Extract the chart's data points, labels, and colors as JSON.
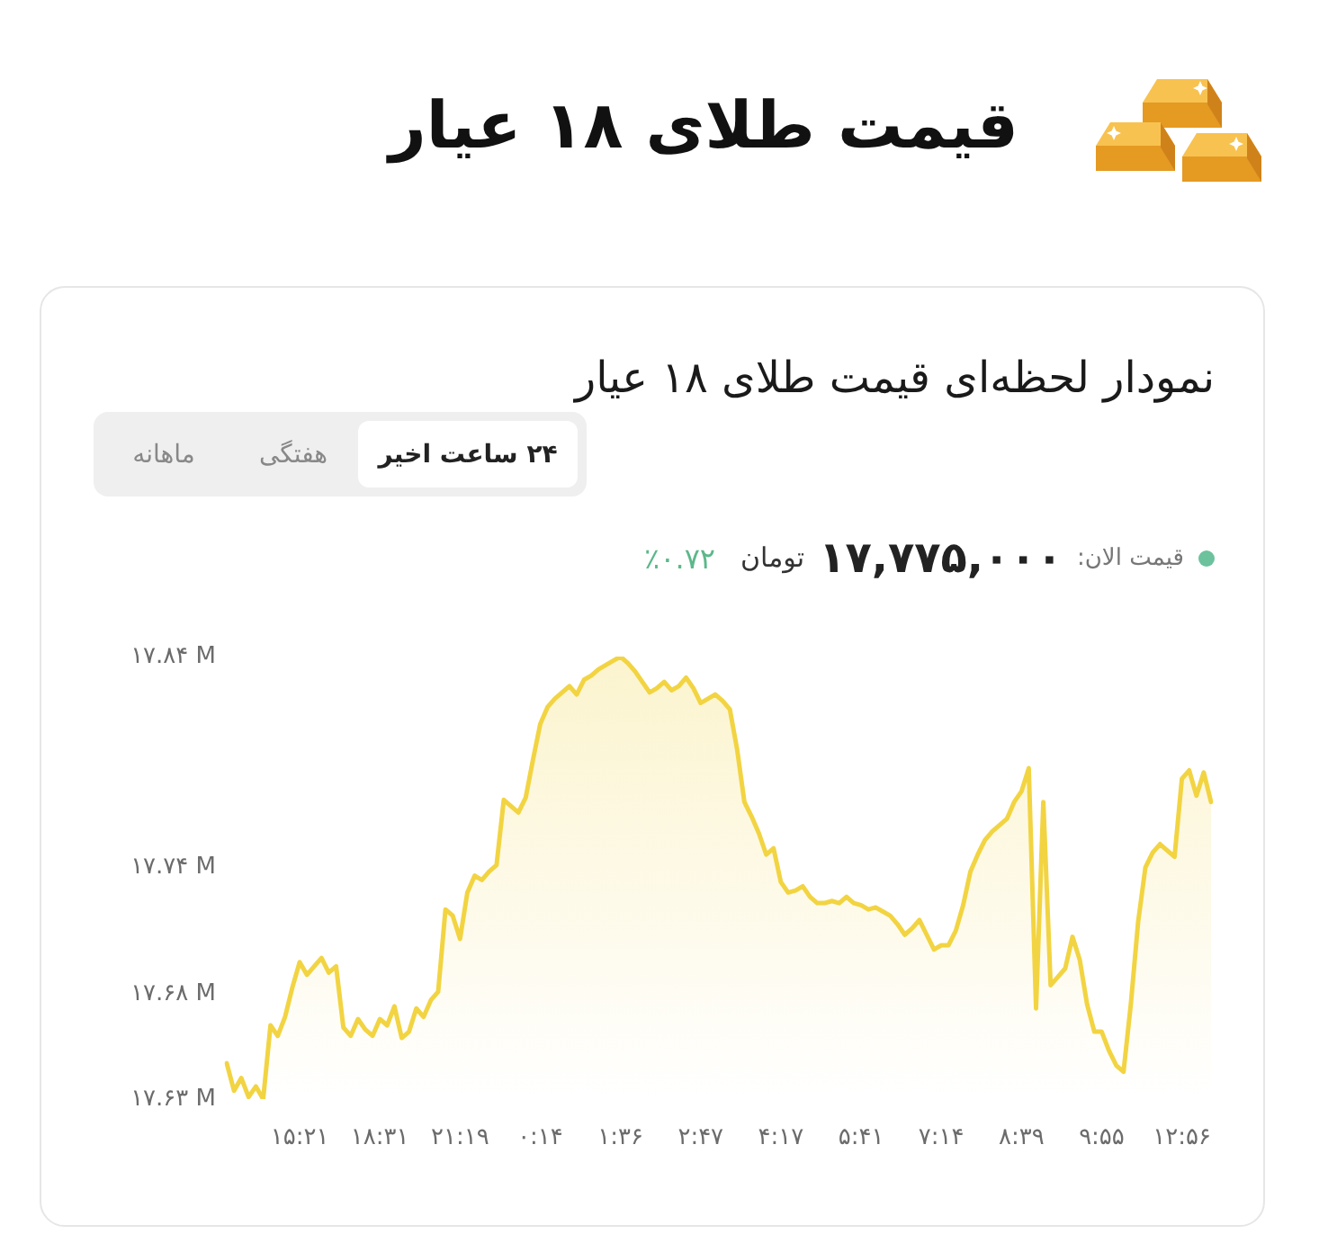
{
  "chart_data": {
    "type": "area",
    "title": "قیمت طلای ۱۸ عیار",
    "subtitle": "نمودار لحظه‌ای قیمت طلای ۱۸ عیار",
    "annotations": [
      "۲۴ ساعت اخیر",
      "هفتگی",
      "ماهانه",
      "قیمت الان:",
      "۱۷,۷۷۵,۰۰۰",
      "تومان",
      "٪۰.۷۲"
    ],
    "categories": [
      null,
      null,
      null,
      null,
      null,
      null,
      null,
      null,
      null,
      null,
      "۱۵:۲۱",
      null,
      null,
      null,
      null,
      null,
      null,
      null,
      null,
      null,
      null,
      "۱۸:۳۱",
      null,
      null,
      null,
      null,
      null,
      null,
      null,
      null,
      null,
      null,
      "۲۱:۱۹",
      null,
      null,
      null,
      null,
      null,
      null,
      null,
      null,
      null,
      null,
      "۰:۱۴",
      null,
      null,
      null,
      null,
      null,
      null,
      null,
      null,
      null,
      null,
      "۱:۳۶",
      null,
      null,
      null,
      null,
      null,
      null,
      null,
      null,
      null,
      null,
      "۲:۴۷",
      null,
      null,
      null,
      null,
      null,
      null,
      null,
      null,
      null,
      null,
      "۴:۱۷",
      null,
      null,
      null,
      null,
      null,
      null,
      null,
      null,
      null,
      null,
      "۵:۴۱",
      null,
      null,
      null,
      null,
      null,
      null,
      null,
      null,
      null,
      null,
      "۷:۱۴",
      null,
      null,
      null,
      null,
      null,
      null,
      null,
      null,
      null,
      null,
      "۸:۳۹",
      null,
      null,
      null,
      null,
      null,
      null,
      null,
      null,
      null,
      null,
      "۹:۵۵",
      null,
      null,
      null,
      null,
      null,
      null,
      null,
      null,
      null,
      null,
      "۱۲:۵۶",
      null,
      null,
      null,
      null
    ],
    "series": [
      {
        "color": "#f2d442",
        "values": [
          17.647,
          17.634,
          17.64,
          17.631,
          17.636,
          17.63,
          17.665,
          17.66,
          17.669,
          17.683,
          17.695,
          17.689,
          17.693,
          17.697,
          17.69,
          17.693,
          17.664,
          17.66,
          17.668,
          17.663,
          17.66,
          17.668,
          17.665,
          17.674,
          17.659,
          17.662,
          17.673,
          17.669,
          17.677,
          17.681,
          17.72,
          17.717,
          17.706,
          17.728,
          17.736,
          17.734,
          17.738,
          17.741,
          17.772,
          17.769,
          17.766,
          17.773,
          17.791,
          17.808,
          17.816,
          17.82,
          17.823,
          17.826,
          17.822,
          17.829,
          17.831,
          17.834,
          17.836,
          17.838,
          17.84,
          17.837,
          17.833,
          17.828,
          17.823,
          17.825,
          17.828,
          17.824,
          17.826,
          17.83,
          17.825,
          17.818,
          17.82,
          17.822,
          17.819,
          17.815,
          17.796,
          17.771,
          17.764,
          17.756,
          17.746,
          17.749,
          17.733,
          17.728,
          17.729,
          17.731,
          17.726,
          17.723,
          17.723,
          17.724,
          17.723,
          17.726,
          17.723,
          17.722,
          17.72,
          17.721,
          17.719,
          17.717,
          17.713,
          17.708,
          17.711,
          17.715,
          17.708,
          17.701,
          17.703,
          17.703,
          17.71,
          17.722,
          17.738,
          17.746,
          17.753,
          17.757,
          17.76,
          17.763,
          17.771,
          17.776,
          17.787,
          17.673,
          17.771,
          17.684,
          17.688,
          17.692,
          17.707,
          17.696,
          17.675,
          17.662,
          17.662,
          17.653,
          17.646,
          17.643,
          17.675,
          17.714,
          17.74,
          17.747,
          17.751,
          17.748,
          17.745,
          17.782,
          17.786,
          17.774,
          17.785,
          17.771
        ]
      }
    ],
    "ylim": [
      17.63,
      17.84
    ],
    "yticks": [
      {
        "value": 17.63,
        "label": "۱۷.۶۳ M"
      },
      {
        "value": 17.68,
        "label": "۱۷.۶۸ M"
      },
      {
        "value": 17.74,
        "label": "۱۷.۷۴ M"
      },
      {
        "value": 17.84,
        "label": "۱۷.۸۴ M"
      }
    ]
  }
}
